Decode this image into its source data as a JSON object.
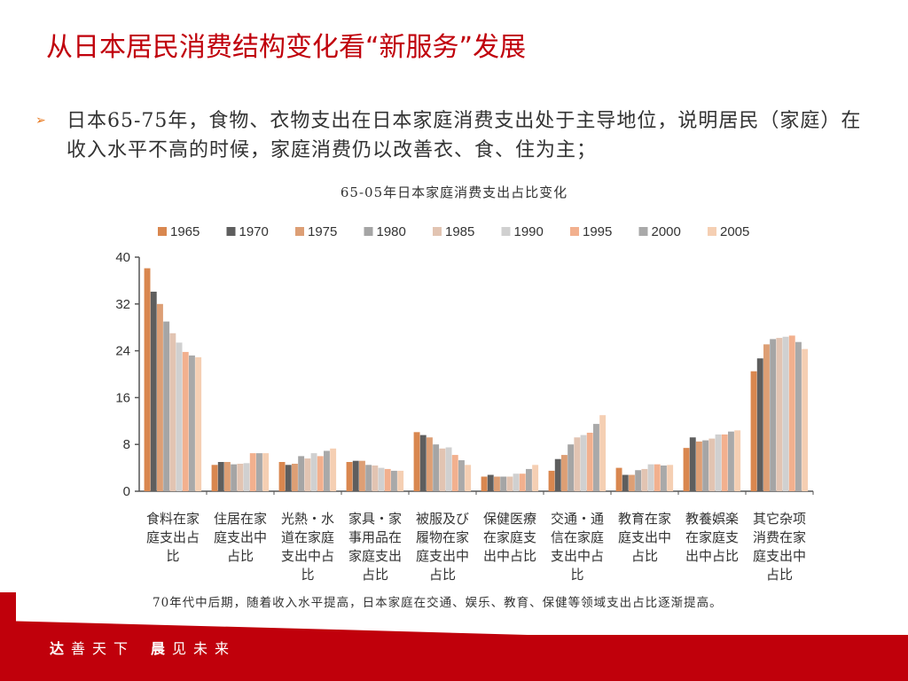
{
  "slide": {
    "title": "从日本居民消费结构变化看“新服务”发展",
    "bullet_marker": "➢",
    "bullet_text": "日本65-75年，食物、衣物支出在日本家庭消费支出处于主导地位，说明居民（家庭）在收入水平不高的时候，家庭消费仍以改善衣、食、住为主；",
    "note": "70年代中后期，随着收入水平提高，日本家庭在交通、娱乐、教育、保健等领域支出占比逐渐提高。",
    "footer": {
      "part1_first": "达",
      "part1_rest": "善天下",
      "part2_first": "晨",
      "part2_rest": "见未来"
    }
  },
  "colors": {
    "brand_red": "#c0000b"
  },
  "chart_data": {
    "type": "bar",
    "title": "65-05年日本家庭消费支出占比变化",
    "ylim": [
      0,
      40
    ],
    "yticks": [
      0,
      8,
      16,
      24,
      32,
      40
    ],
    "legend_position": "top",
    "categories": [
      "食料在家庭支出占比",
      "住居在家庭支出中占比",
      "光熱・水道在家庭支出中占比",
      "家具・家事用品在家庭支出占比",
      "被服及び履物在家庭支出中占比",
      "保健医療在家庭支出中占比",
      "交通・通信在家庭支出中占比",
      "教育在家庭支出中占比",
      "教養娯楽在家庭支出中占比",
      "其它杂项消费在家庭支出中占比"
    ],
    "category_lines": [
      [
        "食料在家",
        "庭支出占",
        "比"
      ],
      [
        "住居在家",
        "庭支出中",
        "占比"
      ],
      [
        "光熱・水",
        "道在家庭",
        "支出中占",
        "比"
      ],
      [
        "家具・家",
        "事用品在",
        "家庭支出",
        "占比"
      ],
      [
        "被服及び",
        "履物在家",
        "庭支出中",
        "占比"
      ],
      [
        "保健医療",
        "在家庭支",
        "出中占比"
      ],
      [
        "交通・通",
        "信在家庭",
        "支出中占",
        "比"
      ],
      [
        "教育在家",
        "庭支出中",
        "占比"
      ],
      [
        "教養娯楽",
        "在家庭支",
        "出中占比"
      ],
      [
        "其它杂项",
        "消费在家",
        "庭支出中",
        "占比"
      ]
    ],
    "series": [
      {
        "name": "1965",
        "color": "#d9874f",
        "values": [
          38.1,
          4.5,
          5.0,
          5.0,
          10.1,
          2.5,
          3.5,
          4.0,
          7.4,
          20.5
        ]
      },
      {
        "name": "1970",
        "color": "#5e5e5e",
        "values": [
          34.1,
          5.0,
          4.5,
          5.2,
          9.6,
          2.8,
          5.5,
          2.8,
          9.2,
          22.7
        ]
      },
      {
        "name": "1975",
        "color": "#dd9f75",
        "values": [
          32.0,
          5.0,
          4.7,
          5.2,
          9.2,
          2.5,
          6.2,
          2.8,
          8.5,
          25.1
        ]
      },
      {
        "name": "1980",
        "color": "#a5a5a5",
        "values": [
          29.0,
          4.6,
          6.0,
          4.5,
          8.0,
          2.5,
          8.0,
          3.6,
          8.7,
          26.0
        ]
      },
      {
        "name": "1985",
        "color": "#e2c4b2",
        "values": [
          27.0,
          4.7,
          5.6,
          4.4,
          7.3,
          2.5,
          9.2,
          3.8,
          9.0,
          26.2
        ]
      },
      {
        "name": "1990",
        "color": "#d0d0d0",
        "values": [
          25.4,
          4.8,
          6.5,
          4.0,
          7.5,
          3.0,
          9.6,
          4.6,
          9.7,
          26.4
        ]
      },
      {
        "name": "1995",
        "color": "#f2b08e",
        "values": [
          23.8,
          6.5,
          6.0,
          3.8,
          6.2,
          3.0,
          10.0,
          4.6,
          9.7,
          26.6
        ]
      },
      {
        "name": "2000",
        "color": "#a9a9a9",
        "values": [
          23.2,
          6.5,
          6.9,
          3.5,
          5.3,
          3.8,
          11.5,
          4.4,
          10.2,
          25.5
        ]
      },
      {
        "name": "2005",
        "color": "#f5cfb3",
        "values": [
          22.9,
          6.5,
          7.3,
          3.5,
          4.5,
          4.5,
          13.0,
          4.5,
          10.4,
          24.3
        ]
      }
    ]
  }
}
